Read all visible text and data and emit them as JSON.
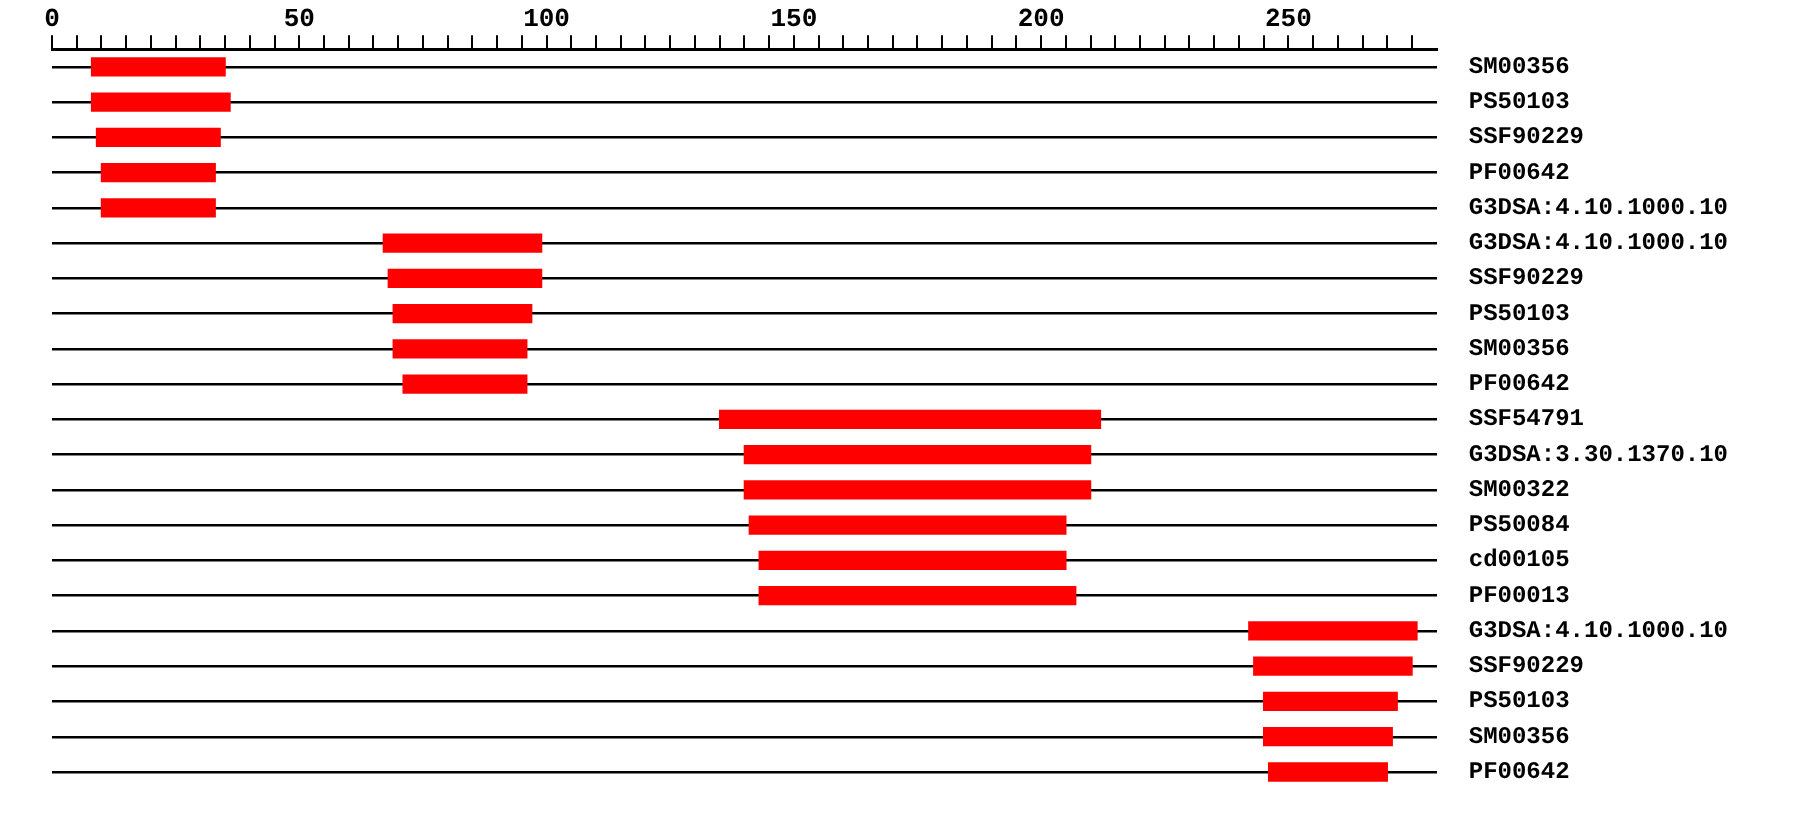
{
  "chart_data": {
    "type": "bar",
    "orientation": "horizontal",
    "grid": "y",
    "legend": false,
    "categories": [
      "SM00356",
      "PS50103",
      "SSF90229",
      "PF00642",
      "G3DSA:4.10.1000.10",
      "G3DSA:4.10.1000.10",
      "SSF90229",
      "PS50103",
      "SM00356",
      "PF00642",
      "SSF54791",
      "G3DSA:3.30.1370.10",
      "SM00322",
      "PS50084",
      "cd00105",
      "PF00013",
      "G3DSA:4.10.1000.10",
      "SSF90229",
      "PS50103",
      "SM00356",
      "PF00642"
    ],
    "base": [
      8,
      8,
      9,
      10,
      10,
      67,
      68,
      69,
      69,
      71,
      135,
      140,
      140,
      141,
      143,
      143,
      242,
      243,
      245,
      245,
      246
    ],
    "values": [
      27,
      28,
      25,
      23,
      23,
      32,
      31,
      28,
      27,
      25,
      77,
      70,
      70,
      64,
      62,
      64,
      34,
      32,
      27,
      26,
      24
    ],
    "color": "#ff0000",
    "xlim": [
      0,
      280
    ],
    "xticks": [
      0,
      {
        "value": 5,
        "label": null
      },
      {
        "value": 10,
        "label": null
      },
      {
        "value": 15,
        "label": null
      },
      {
        "value": 20,
        "label": null
      },
      {
        "value": 25,
        "label": null
      },
      {
        "value": 30,
        "label": null
      },
      {
        "value": 35,
        "label": null
      },
      {
        "value": 40,
        "label": null
      },
      {
        "value": 45,
        "label": null
      },
      50,
      {
        "value": 55,
        "label": null
      },
      {
        "value": 60,
        "label": null
      },
      {
        "value": 65,
        "label": null
      },
      {
        "value": 70,
        "label": null
      },
      {
        "value": 75,
        "label": null
      },
      {
        "value": 80,
        "label": null
      },
      {
        "value": 85,
        "label": null
      },
      {
        "value": 90,
        "label": null
      },
      {
        "value": 95,
        "label": null
      },
      100,
      {
        "value": 105,
        "label": null
      },
      {
        "value": 110,
        "label": null
      },
      {
        "value": 115,
        "label": null
      },
      {
        "value": 120,
        "label": null
      },
      {
        "value": 125,
        "label": null
      },
      {
        "value": 130,
        "label": null
      },
      {
        "value": 135,
        "label": null
      },
      {
        "value": 140,
        "label": null
      },
      {
        "value": 145,
        "label": null
      },
      150,
      {
        "value": 155,
        "label": null
      },
      {
        "value": 160,
        "label": null
      },
      {
        "value": 165,
        "label": null
      },
      {
        "value": 170,
        "label": null
      },
      {
        "value": 175,
        "label": null
      },
      {
        "value": 180,
        "label": null
      },
      {
        "value": 185,
        "label": null
      },
      {
        "value": 190,
        "label": null
      },
      {
        "value": 195,
        "label": null
      },
      200,
      {
        "value": 205,
        "label": null
      },
      {
        "value": 210,
        "label": null
      },
      {
        "value": 215,
        "label": null
      },
      {
        "value": 220,
        "label": null
      },
      {
        "value": 225,
        "label": null
      },
      {
        "value": 230,
        "label": null
      },
      {
        "value": 235,
        "label": null
      },
      {
        "value": 240,
        "label": null
      },
      {
        "value": 245,
        "label": null
      },
      250,
      {
        "value": 255,
        "label": null
      },
      {
        "value": 260,
        "label": null
      },
      {
        "value": 265,
        "label": null
      },
      {
        "value": 270,
        "label": null
      },
      {
        "value": 275,
        "label": null
      }
    ]
  }
}
